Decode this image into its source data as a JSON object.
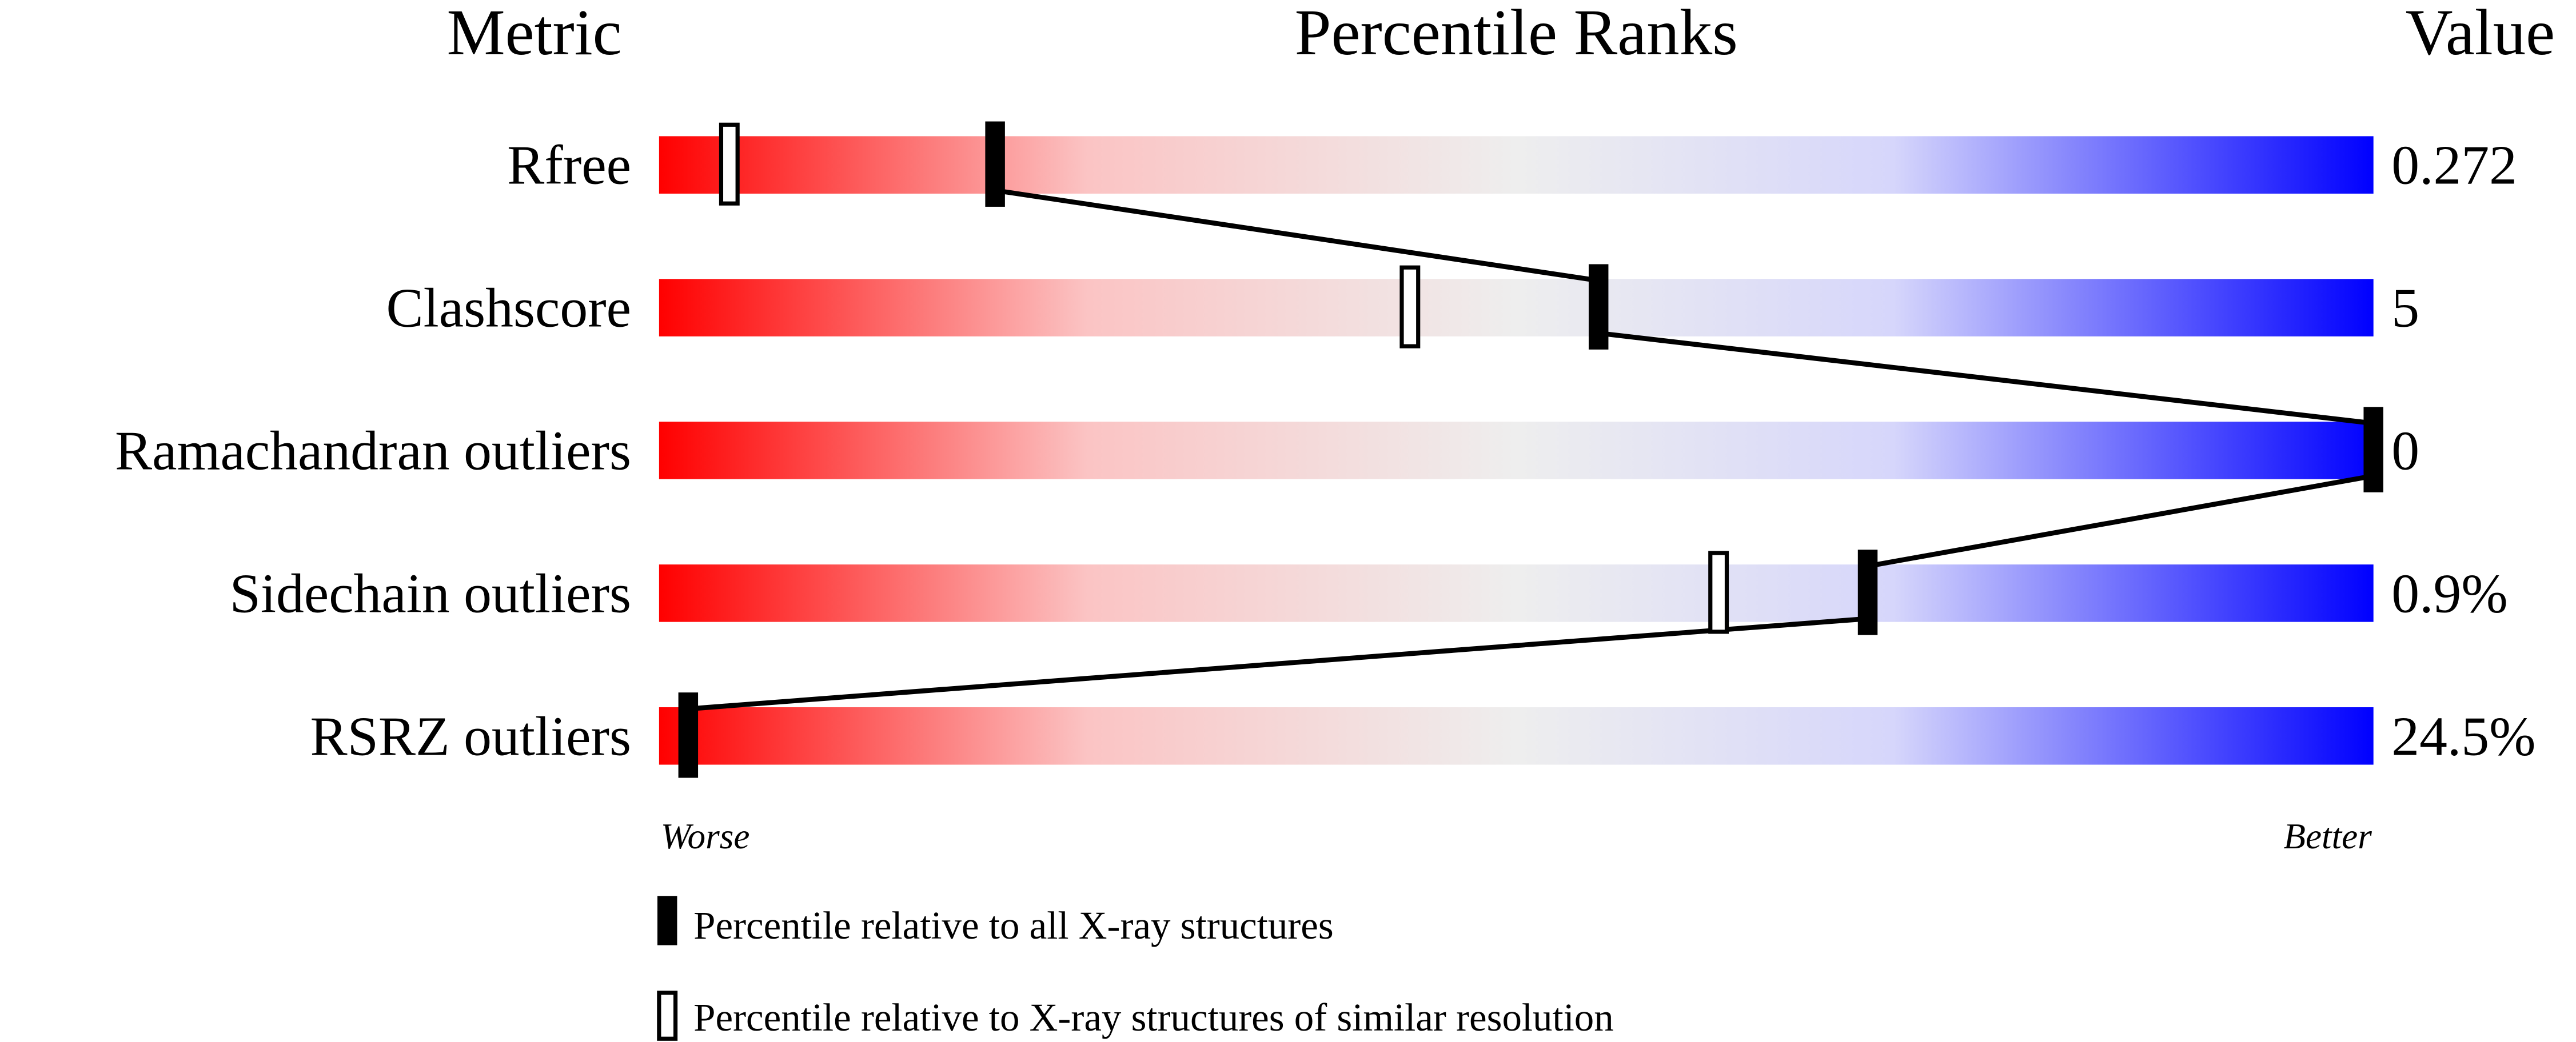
{
  "chart_data": {
    "type": "percentile-bar",
    "headers": {
      "metric": "Metric",
      "ranks": "Percentile Ranks",
      "value": "Value"
    },
    "axis": {
      "range": [
        0,
        100
      ],
      "left_label": "Worse",
      "right_label": "Better"
    },
    "colors": {
      "worse": "#ff0000",
      "middle": "#eeeeee",
      "better": "#0000ff",
      "marker": "#000000"
    },
    "rows": [
      {
        "metric": "Rfree",
        "value": "0.272",
        "percentile_all": 19.6,
        "percentile_similar": 4.1
      },
      {
        "metric": "Clashscore",
        "value": "5",
        "percentile_all": 54.8,
        "percentile_similar": 43.8
      },
      {
        "metric": "Ramachandran outliers",
        "value": "0",
        "percentile_all": 100,
        "percentile_similar": null
      },
      {
        "metric": "Sidechain outliers",
        "value": "0.9%",
        "percentile_all": 70.5,
        "percentile_similar": 61.8
      },
      {
        "metric": "RSRZ outliers",
        "value": "24.5%",
        "percentile_all": 1.7,
        "percentile_similar": null
      }
    ],
    "legend": [
      {
        "marker": "filled",
        "label": "Percentile relative to all X-ray structures"
      },
      {
        "marker": "hollow",
        "label": "Percentile relative to X-ray structures of similar resolution"
      }
    ]
  }
}
